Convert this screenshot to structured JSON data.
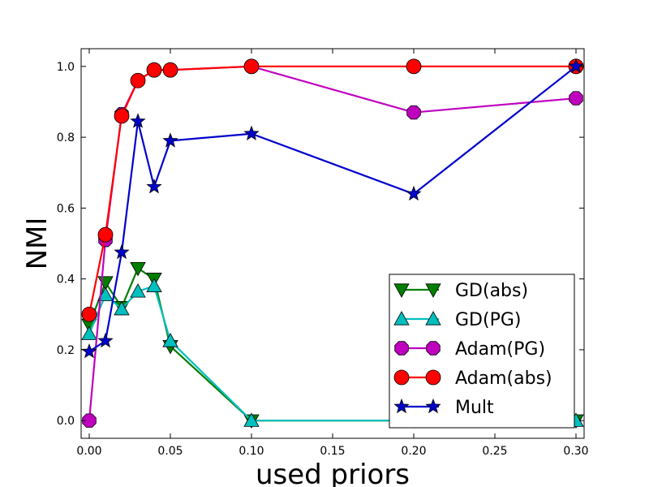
{
  "chart_data": {
    "type": "line",
    "title": "",
    "xlabel": "used priors",
    "ylabel": "NMI",
    "xlim": [
      -0.005,
      0.305
    ],
    "ylim": [
      -0.05,
      1.05
    ],
    "xticks": [
      "0.00",
      "0.05",
      "0.10",
      "0.15",
      "0.20",
      "0.25",
      "0.30"
    ],
    "xtick_values": [
      0.0,
      0.05,
      0.1,
      0.15,
      0.2,
      0.25,
      0.3
    ],
    "yticks": [
      "0.0",
      "0.2",
      "0.4",
      "0.6",
      "0.8",
      "1.0"
    ],
    "ytick_values": [
      0.0,
      0.2,
      0.4,
      0.6,
      0.8,
      1.0
    ],
    "grid": false,
    "legend_position": "bottom-right",
    "series": [
      {
        "name": "GD(abs)",
        "color": "#007f00",
        "marker": "triangle-down",
        "x": [
          0.0,
          0.01,
          0.02,
          0.03,
          0.04,
          0.05,
          0.1,
          0.2,
          0.3
        ],
        "y": [
          0.27,
          0.39,
          0.32,
          0.43,
          0.4,
          0.21,
          0.0,
          0.0,
          0.0
        ]
      },
      {
        "name": "GD(PG)",
        "color": "#00bfbf",
        "marker": "triangle-up",
        "x": [
          0.0,
          0.01,
          0.02,
          0.03,
          0.04,
          0.05,
          0.1,
          0.2,
          0.3
        ],
        "y": [
          0.245,
          0.355,
          0.315,
          0.365,
          0.38,
          0.225,
          0.0,
          0.0,
          0.0
        ]
      },
      {
        "name": "Adam(PG)",
        "color": "#bf00bf",
        "marker": "octagon",
        "x": [
          0.0,
          0.01,
          0.02,
          0.03,
          0.04,
          0.05,
          0.1,
          0.2,
          0.3
        ],
        "y": [
          0.0,
          0.51,
          0.865,
          0.96,
          0.99,
          0.99,
          1.0,
          0.87,
          0.91
        ]
      },
      {
        "name": "Adam(abs)",
        "color": "#ff0000",
        "marker": "circle",
        "x": [
          0.0,
          0.01,
          0.02,
          0.03,
          0.04,
          0.05,
          0.1,
          0.2,
          0.3
        ],
        "y": [
          0.3,
          0.525,
          0.86,
          0.96,
          0.99,
          0.99,
          1.0,
          1.0,
          1.0
        ]
      },
      {
        "name": "Mult",
        "color": "#0000cc",
        "marker": "star",
        "x": [
          0.0,
          0.01,
          0.02,
          0.03,
          0.04,
          0.05,
          0.1,
          0.2,
          0.3
        ],
        "y": [
          0.195,
          0.225,
          0.475,
          0.845,
          0.66,
          0.79,
          0.81,
          0.64,
          1.0
        ]
      }
    ]
  }
}
